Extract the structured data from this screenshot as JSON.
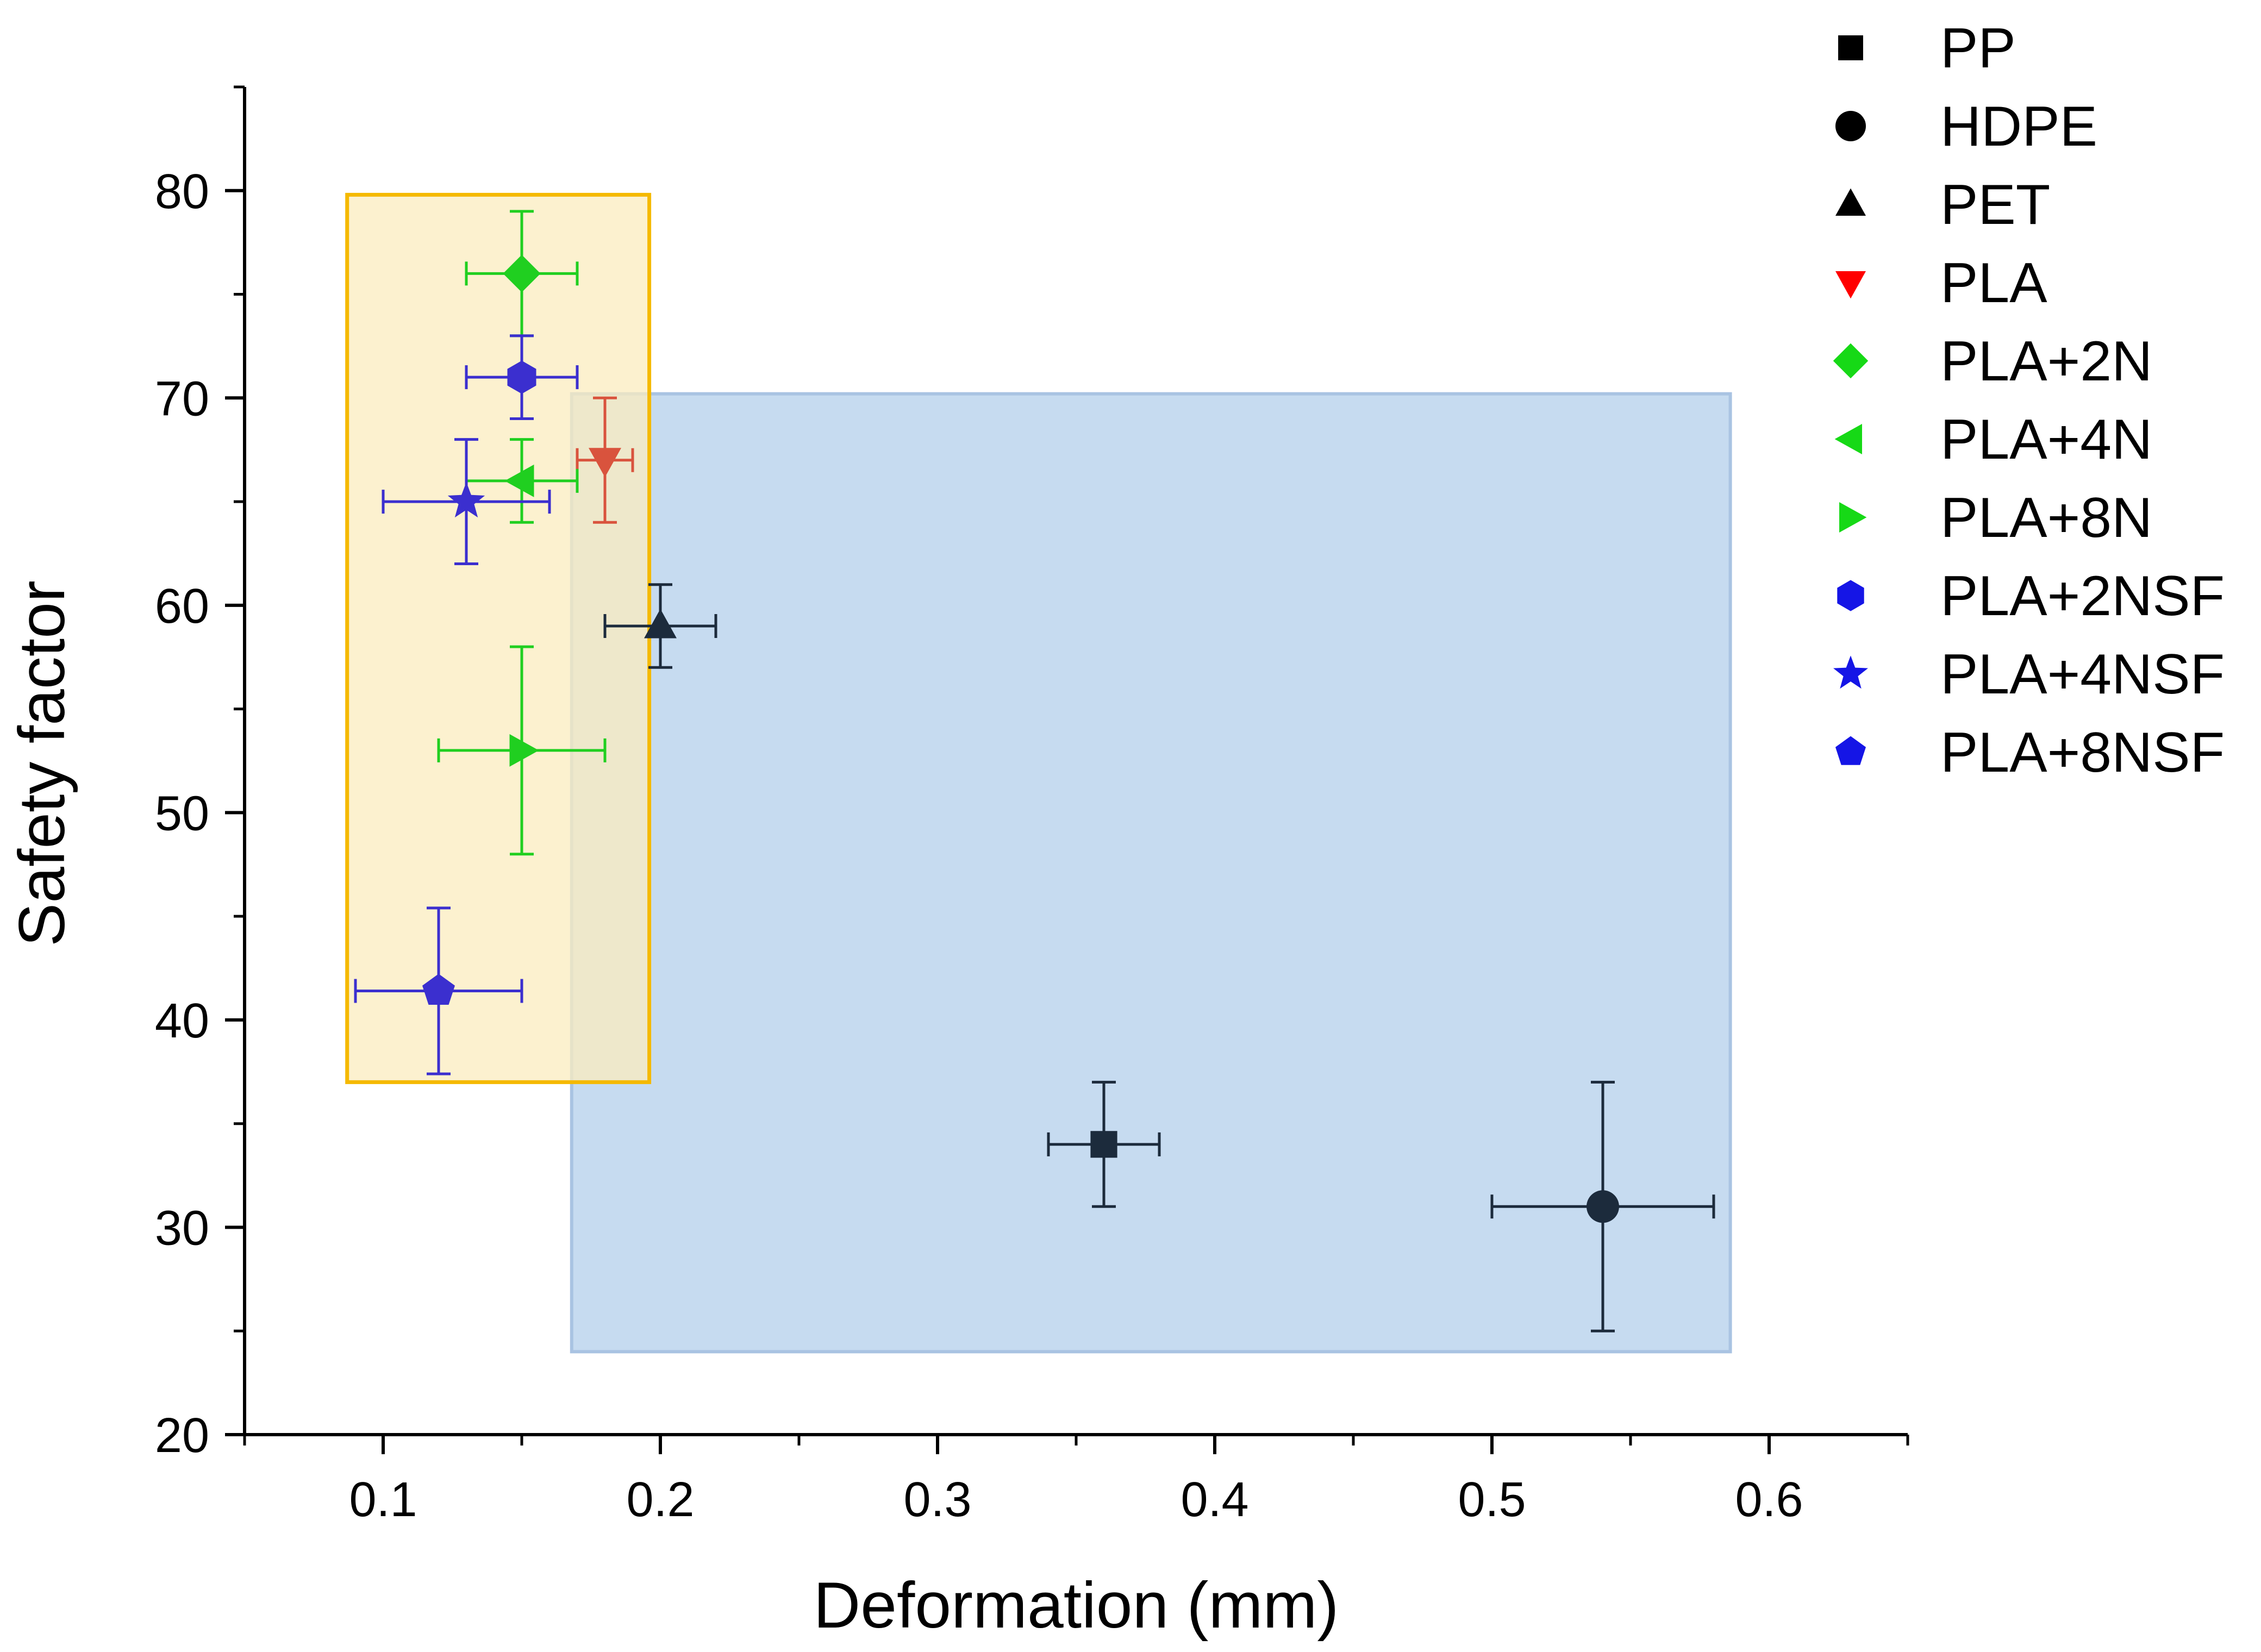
{
  "chart_data": {
    "type": "scatter",
    "title": "",
    "xlabel": "Deformation (mm)",
    "ylabel": "Safety factor",
    "xlim": [
      0.05,
      0.65
    ],
    "ylim": [
      20,
      85
    ],
    "xticks": [
      "0.1",
      "0.2",
      "0.3",
      "0.4",
      "0.5",
      "0.6"
    ],
    "yticks": [
      "20",
      "30",
      "40",
      "50",
      "60",
      "70",
      "80"
    ],
    "legend_position": "right",
    "regions": [
      {
        "name": "blue-region",
        "x": [
          0.168,
          0.586
        ],
        "y": [
          24,
          70.2
        ],
        "fill": "#c6dbf0",
        "stroke": "#a9c3e2"
      },
      {
        "name": "yellow-region",
        "x": [
          0.087,
          0.196
        ],
        "y": [
          37,
          79.8
        ],
        "fill": "#fbecbf",
        "stroke": "#f5b900"
      }
    ],
    "series": [
      {
        "name": "PP",
        "marker": "square",
        "legend_color": "#000000",
        "plot_color": "#1c2b3c",
        "x": 0.36,
        "y": 34,
        "xerr": 0.02,
        "yerr": 3
      },
      {
        "name": "HDPE",
        "marker": "circle",
        "legend_color": "#000000",
        "plot_color": "#1c2b3c",
        "x": 0.54,
        "y": 31,
        "xerr": 0.04,
        "yerr": 6
      },
      {
        "name": "PET",
        "marker": "triangle-up",
        "legend_color": "#000000",
        "plot_color": "#1c2b3c",
        "x": 0.2,
        "y": 59,
        "xerr": 0.02,
        "yerr": 2
      },
      {
        "name": "PLA",
        "marker": "triangle-down",
        "legend_color": "#ff0000",
        "plot_color": "#d9533d",
        "x": 0.18,
        "y": 67,
        "xerr": 0.01,
        "yerr": 3
      },
      {
        "name": "PLA+2N",
        "marker": "diamond",
        "legend_color": "#16d916",
        "plot_color": "#20cf20",
        "x": 0.15,
        "y": 76,
        "xerr": 0.02,
        "yerr": 3
      },
      {
        "name": "PLA+4N",
        "marker": "triangle-left",
        "legend_color": "#16d916",
        "plot_color": "#20cf20",
        "x": 0.15,
        "y": 66,
        "xerr": 0.02,
        "yerr": 2
      },
      {
        "name": "PLA+8N",
        "marker": "triangle-right",
        "legend_color": "#16d916",
        "plot_color": "#20cf20",
        "x": 0.15,
        "y": 53,
        "xerr": 0.03,
        "yerr": 5
      },
      {
        "name": "PLA+2NSF",
        "marker": "hexagon",
        "legend_color": "#1515e6",
        "plot_color": "#3b2fcf",
        "x": 0.15,
        "y": 71,
        "xerr": 0.02,
        "yerr": 2
      },
      {
        "name": "PLA+4NSF",
        "marker": "star",
        "legend_color": "#1515e6",
        "plot_color": "#3b2fcf",
        "x": 0.13,
        "y": 65,
        "xerr": 0.03,
        "yerr": 3
      },
      {
        "name": "PLA+8NSF",
        "marker": "pentagon",
        "legend_color": "#1515e6",
        "plot_color": "#3b2fcf",
        "x": 0.12,
        "y": 41.4,
        "xerr": 0.03,
        "yerr": 4
      }
    ]
  }
}
